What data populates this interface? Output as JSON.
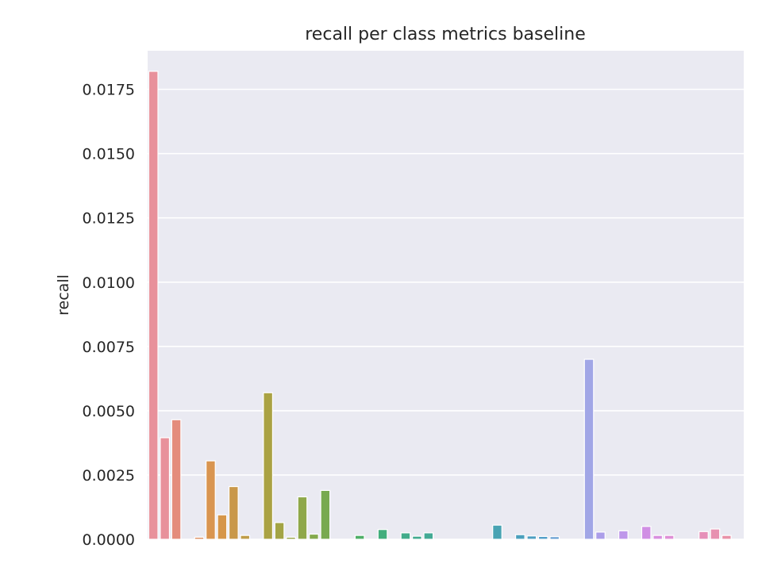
{
  "chart_data": {
    "type": "bar",
    "title": "recall per class metrics baseline",
    "xlabel": "",
    "ylabel": "recall",
    "ylim": [
      0,
      0.019
    ],
    "yticks": [
      "0.0000",
      "0.0025",
      "0.0050",
      "0.0075",
      "0.0100",
      "0.0125",
      "0.0150",
      "0.0175"
    ],
    "ytick_values": [
      0,
      0.0025,
      0.005,
      0.0075,
      0.01,
      0.0125,
      0.015,
      0.0175
    ],
    "x_tick_labels_visible": false,
    "grid": true,
    "background": "#eaeaf2",
    "values": [
      0.0182,
      0.00395,
      0.00465,
      0.0,
      8e-05,
      0.00305,
      0.00095,
      0.00205,
      0.00015,
      0.0,
      0.0057,
      0.00065,
      8e-05,
      0.00165,
      0.0002,
      0.0019,
      0.0,
      0.0,
      0.00015,
      0.0,
      0.00038,
      0.0,
      0.00025,
      0.00012,
      0.00025,
      0.0,
      0.0,
      0.0,
      0.0,
      0.0,
      0.00055,
      0.0,
      0.00018,
      0.00013,
      0.00011,
      0.0001,
      0.0,
      0.0,
      0.007,
      0.00028,
      0.0,
      0.00033,
      0.0,
      0.0005,
      0.00015,
      0.00015,
      0.0,
      0.0,
      0.0003,
      0.0004,
      0.00015,
      0.0
    ],
    "colors": [
      "#e8919b",
      "#e8919b",
      "#e48c7c",
      "#e08d6b",
      "#dd9061",
      "#d99550",
      "#d69649",
      "#c9984a",
      "#bf9c48",
      "#b59f45",
      "#aaa243",
      "#a3a445",
      "#9aa648",
      "#8fa84a",
      "#84a94d",
      "#78aa4f",
      "#6aac55",
      "#5fae5c",
      "#4faf68",
      "#45ae75",
      "#42ae7d",
      "#42ad85",
      "#42ac8b",
      "#42ab90",
      "#43aa95",
      "#43a99a",
      "#44a89f",
      "#45a7a4",
      "#46a6a9",
      "#47a4ae",
      "#48a3b3",
      "#4aa2b8",
      "#4ba0bd",
      "#4d9fc2",
      "#509dc8",
      "#5e9ad0",
      "#7596d8",
      "#8b94de",
      "#a1a6e6",
      "#ac9ee9",
      "#b49beb",
      "#be97ea",
      "#c594e8",
      "#d08fe4",
      "#d88fdf",
      "#df8fd6",
      "#e28fcd",
      "#e58ec4",
      "#e690b9",
      "#e791b0",
      "#e892a8",
      "#e893a2"
    ]
  }
}
